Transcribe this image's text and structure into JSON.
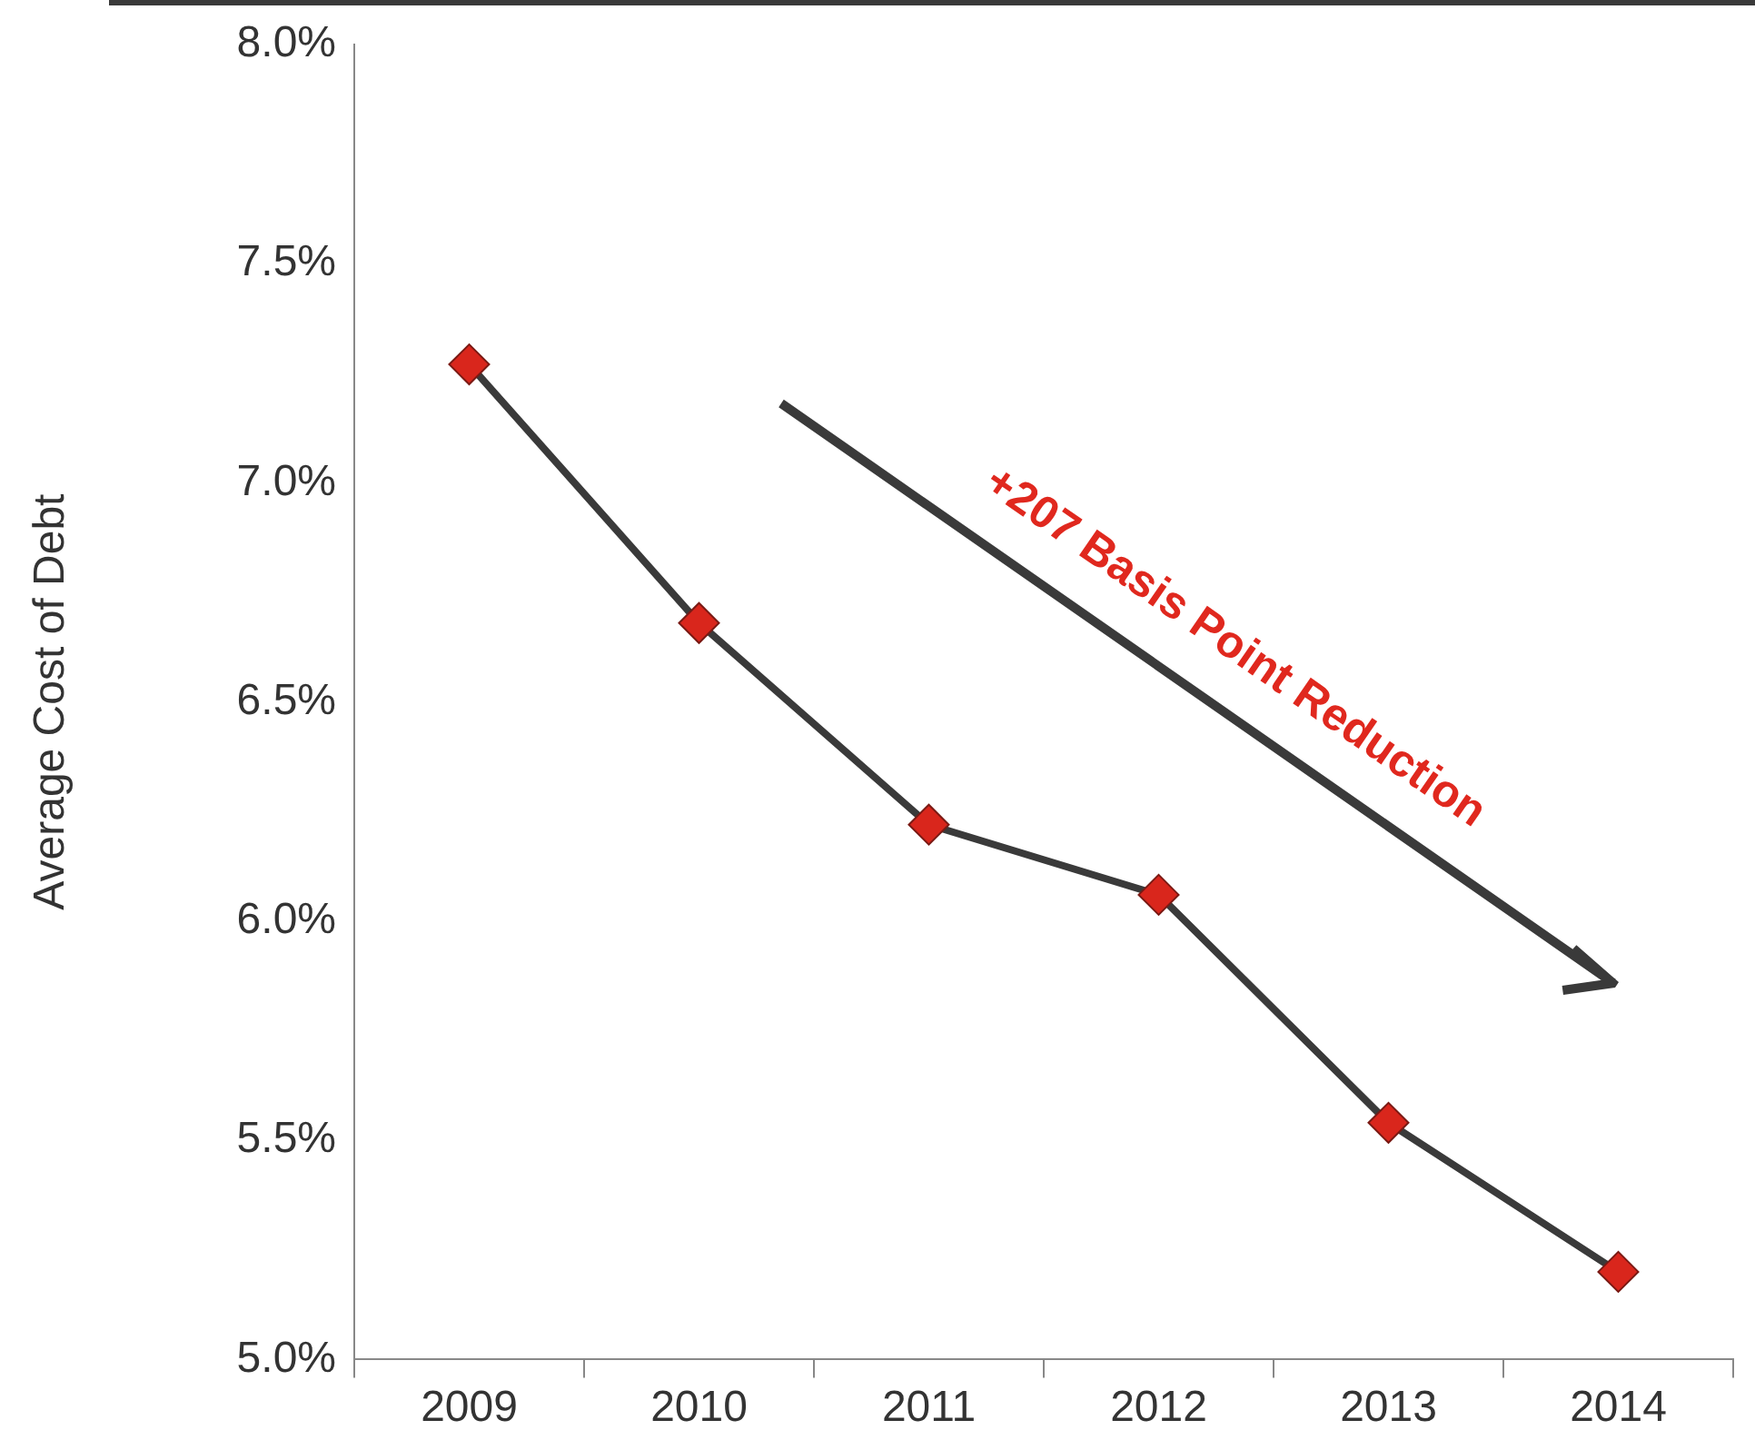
{
  "chart_data": {
    "type": "line",
    "ylabel": "Average Cost of Debt",
    "categories": [
      "2009",
      "2010",
      "2011",
      "2012",
      "2013",
      "2014"
    ],
    "series": [
      {
        "color": "#3a3a3a",
        "values": [
          7.27,
          6.68,
          6.22,
          6.06,
          5.54,
          5.2
        ]
      }
    ],
    "ylim": [
      5.0,
      8.0
    ],
    "yticks": [
      {
        "value": 5.0,
        "label": "5.0%"
      },
      {
        "value": 5.5,
        "label": "5.5%"
      },
      {
        "value": 6.0,
        "label": "6.0%"
      },
      {
        "value": 6.5,
        "label": "6.5%"
      },
      {
        "value": 7.0,
        "label": "7.0%"
      },
      {
        "value": 7.5,
        "label": "7.5%"
      },
      {
        "value": 8.0,
        "label": "8.0%"
      }
    ],
    "grid": false,
    "legend": false,
    "marker": "diamond",
    "line_style": "solid",
    "annotations": [
      "+207 Basis Point Reduction"
    ]
  }
}
